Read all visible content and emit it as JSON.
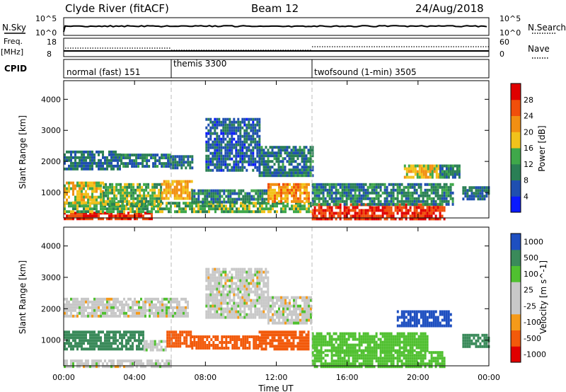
{
  "header": {
    "station": "Clyde River (fitACF)",
    "beam": "Beam 12",
    "date": "24/Aug/2018"
  },
  "noise_panel": {
    "left_label": "N.Sky",
    "left_ticks": [
      "10^5",
      "10^0"
    ],
    "right_ticks": [
      "10^5",
      "10^0"
    ],
    "right_label": "N.Search"
  },
  "freq_panel": {
    "left_label_1": "Freq.",
    "left_label_2": "[MHz]",
    "left_ticks": [
      "18",
      "8"
    ],
    "right_ticks": [
      "60",
      "0"
    ],
    "right_label": "Nave"
  },
  "cpid_panel": {
    "label": "CPID",
    "programs": [
      {
        "name": "normal (fast) 151",
        "start_hour": 0
      },
      {
        "name": "themis 3300",
        "start_hour": 6
      },
      {
        "name": "twofsound (1-min) 3505",
        "start_hour": 14
      }
    ]
  },
  "colors": {
    "power_scale": [
      "#0a1aff",
      "#1f4fb0",
      "#2a7f55",
      "#3fa84a",
      "#f2c21b",
      "#f28f12",
      "#f04f0b",
      "#e00000"
    ],
    "velocity_scale": [
      "#e00000",
      "#f25a0b",
      "#f59a19",
      "#c8c8c8",
      "#c8c8c8",
      "#50c030",
      "#3a8a5a",
      "#1e4fc0"
    ]
  },
  "chart_data": [
    {
      "type": "heatmap",
      "panel": "power",
      "xlabel": "",
      "ylabel": "Slant Range [km]",
      "xlim": [
        0,
        24
      ],
      "ylim": [
        180,
        4600
      ],
      "yticks": [
        1000,
        2000,
        3000,
        4000
      ],
      "colorbar": {
        "label": "Power [dB]",
        "range": [
          0,
          32
        ],
        "tick_labels": [
          "28",
          "24",
          "20",
          "16",
          "12",
          "8",
          "4"
        ]
      },
      "regions": [
        {
          "t0": 0.0,
          "t1": 5.0,
          "r0": 180,
          "r1": 380,
          "value": 28
        },
        {
          "t0": 0.0,
          "t1": 14.0,
          "r0": 380,
          "r1": 700,
          "value": 14
        },
        {
          "t0": 0.0,
          "t1": 2.2,
          "r0": 700,
          "r1": 1350,
          "value": 18
        },
        {
          "t0": 2.2,
          "t1": 5.5,
          "r0": 650,
          "r1": 1300,
          "value": 14
        },
        {
          "t0": 5.5,
          "t1": 7.2,
          "r0": 800,
          "r1": 1400,
          "value": 20
        },
        {
          "t0": 7.2,
          "t1": 11.5,
          "r0": 700,
          "r1": 1100,
          "value": 10
        },
        {
          "t0": 11.5,
          "t1": 13.8,
          "r0": 750,
          "r1": 1300,
          "value": 22
        },
        {
          "t0": 0.0,
          "t1": 3.2,
          "r0": 1750,
          "r1": 2350,
          "value": 8
        },
        {
          "t0": 3.2,
          "t1": 6.0,
          "r0": 1800,
          "r1": 2250,
          "value": 9
        },
        {
          "t0": 6.0,
          "t1": 7.2,
          "r0": 1750,
          "r1": 2200,
          "value": 8
        },
        {
          "t0": 8.0,
          "t1": 11.0,
          "r0": 1700,
          "r1": 3400,
          "value": 7
        },
        {
          "t0": 11.0,
          "t1": 14.0,
          "r0": 1500,
          "r1": 2500,
          "value": 9
        },
        {
          "t0": 14.0,
          "t1": 21.5,
          "r0": 180,
          "r1": 650,
          "value": 28
        },
        {
          "t0": 14.0,
          "t1": 22.0,
          "r0": 650,
          "r1": 1300,
          "value": 10
        },
        {
          "t0": 19.2,
          "t1": 21.2,
          "r0": 1450,
          "r1": 1900,
          "value": 18
        },
        {
          "t0": 21.2,
          "t1": 22.3,
          "r0": 1500,
          "r1": 1900,
          "value": 9
        },
        {
          "t0": 22.5,
          "t1": 24.0,
          "r0": 800,
          "r1": 1200,
          "value": 8
        }
      ]
    },
    {
      "type": "heatmap",
      "panel": "velocity",
      "xlabel": "Time UT",
      "ylabel": "Slant Range [km]",
      "xlim": [
        0,
        24
      ],
      "ylim": [
        180,
        4600
      ],
      "yticks": [
        1000,
        2000,
        3000,
        4000
      ],
      "xtick_labels": [
        "00:00",
        "04:00",
        "08:00",
        "12:00",
        "16:00",
        "20:00",
        "00:00"
      ],
      "colorbar": {
        "label": "Velocity [m s^-1]",
        "tick_labels": [
          "1000",
          "500",
          "100",
          "25",
          "-25",
          "-100",
          "-500",
          "-1000"
        ]
      },
      "regions": [
        {
          "t0": 0.0,
          "t1": 6.0,
          "r0": 180,
          "r1": 380,
          "value": 0
        },
        {
          "t0": 0.0,
          "t1": 4.5,
          "r0": 700,
          "r1": 1300,
          "value": 150
        },
        {
          "t0": 4.5,
          "t1": 5.8,
          "r0": 650,
          "r1": 1000,
          "value": 0
        },
        {
          "t0": 5.8,
          "t1": 7.2,
          "r0": 800,
          "r1": 1300,
          "value": -150
        },
        {
          "t0": 7.2,
          "t1": 11.0,
          "r0": 700,
          "r1": 1150,
          "value": -150
        },
        {
          "t0": 11.0,
          "t1": 13.8,
          "r0": 700,
          "r1": 1300,
          "value": -300
        },
        {
          "t0": 0.0,
          "t1": 7.0,
          "r0": 1800,
          "r1": 2350,
          "value": 0
        },
        {
          "t0": 8.0,
          "t1": 11.5,
          "r0": 1700,
          "r1": 3300,
          "value": 0
        },
        {
          "t0": 11.5,
          "t1": 14.0,
          "r0": 1500,
          "r1": 2400,
          "value": 0
        },
        {
          "t0": 14.0,
          "t1": 21.5,
          "r0": 180,
          "r1": 650,
          "value": 60
        },
        {
          "t0": 14.0,
          "t1": 20.5,
          "r0": 650,
          "r1": 1250,
          "value": 60
        },
        {
          "t0": 18.8,
          "t1": 21.8,
          "r0": 1450,
          "r1": 1950,
          "value": 600
        },
        {
          "t0": 22.5,
          "t1": 24.0,
          "r0": 800,
          "r1": 1200,
          "value": 150
        }
      ]
    }
  ]
}
